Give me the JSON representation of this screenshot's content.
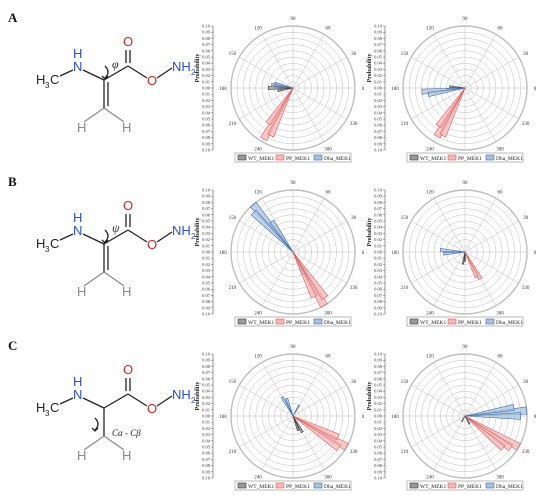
{
  "panels": [
    {
      "label": "A",
      "molecule": {
        "nh": "N",
        "h_on_n": "H",
        "ch3": "H",
        "ch3_sub": "3",
        "ch3_c": "C",
        "o_top": "O",
        "o_ester": "O",
        "nh2_n": "NH",
        "nh2_sub": "2",
        "torsion_symbol": "φ",
        "torsion_label": "",
        "h_left": "H",
        "h_right": "H",
        "variant": "alkene"
      },
      "plots": [
        {
          "ylabel": "Probability",
          "series": [
            {
              "name": "WT_MEK1",
              "petals": [
                {
                  "angle": 180,
                  "r": 0.04
                },
                {
                  "angle": 170,
                  "r": 0.03
                },
                {
                  "angle": 190,
                  "r": 0.025
                }
              ]
            },
            {
              "name": "PP_MEK1",
              "petals": [
                {
                  "angle": 240,
                  "r": 0.095
                },
                {
                  "angle": 245,
                  "r": 0.085
                },
                {
                  "angle": 235,
                  "r": 0.07
                }
              ]
            },
            {
              "name": "Dha_MEK1",
              "petals": [
                {
                  "angle": 170,
                  "r": 0.035
                },
                {
                  "angle": 165,
                  "r": 0.03
                }
              ]
            }
          ]
        },
        {
          "ylabel": "Probability",
          "series": [
            {
              "name": "WT_MEK1",
              "petals": [
                {
                  "angle": 185,
                  "r": 0.03
                },
                {
                  "angle": 175,
                  "r": 0.025
                }
              ]
            },
            {
              "name": "PP_MEK1",
              "petals": [
                {
                  "angle": 240,
                  "r": 0.09
                },
                {
                  "angle": 245,
                  "r": 0.085
                },
                {
                  "angle": 235,
                  "r": 0.075
                }
              ]
            },
            {
              "name": "Dha_MEK1",
              "petals": [
                {
                  "angle": 185,
                  "r": 0.07
                },
                {
                  "angle": 190,
                  "r": 0.06
                }
              ]
            }
          ]
        }
      ]
    },
    {
      "label": "B",
      "molecule": {
        "nh": "N",
        "h_on_n": "H",
        "ch3": "H",
        "ch3_sub": "3",
        "ch3_c": "C",
        "o_top": "O",
        "o_ester": "O",
        "nh2_n": "NH",
        "nh2_sub": "2",
        "torsion_symbol": "ψ",
        "torsion_label": "",
        "h_left": "H",
        "h_right": "H",
        "variant": "alkene"
      },
      "plots": [
        {
          "ylabel": "Probability",
          "series": [
            {
              "name": "WT_MEK1",
              "petals": [
                {
                  "angle": 300,
                  "r": 0.05
                },
                {
                  "angle": 295,
                  "r": 0.04
                }
              ]
            },
            {
              "name": "PP_MEK1",
              "petals": [
                {
                  "angle": 300,
                  "r": 0.1
                },
                {
                  "angle": 305,
                  "r": 0.09
                },
                {
                  "angle": 295,
                  "r": 0.08
                }
              ]
            },
            {
              "name": "Dha_MEK1",
              "petals": [
                {
                  "angle": 130,
                  "r": 0.1
                },
                {
                  "angle": 135,
                  "r": 0.09
                },
                {
                  "angle": 125,
                  "r": 0.06
                }
              ]
            }
          ]
        },
        {
          "ylabel": "Probability",
          "series": [
            {
              "name": "WT_MEK1",
              "petals": [
                {
                  "angle": 260,
                  "r": 0.02
                },
                {
                  "angle": 270,
                  "r": 0.015
                }
              ]
            },
            {
              "name": "PP_MEK1",
              "petals": [
                {
                  "angle": 300,
                  "r": 0.05
                },
                {
                  "angle": 295,
                  "r": 0.045
                }
              ]
            },
            {
              "name": "Dha_MEK1",
              "petals": [
                {
                  "angle": 175,
                  "r": 0.04
                },
                {
                  "angle": 185,
                  "r": 0.035
                }
              ]
            }
          ]
        }
      ]
    },
    {
      "label": "C",
      "molecule": {
        "nh": "N",
        "h_on_n": "H",
        "ch3": "H",
        "ch3_sub": "3",
        "ch3_c": "C",
        "o_top": "O",
        "o_ester": "O",
        "nh2_n": "NH",
        "nh2_sub": "2",
        "torsion_symbol": "",
        "torsion_label": "Cα - Cβ",
        "h_left": "H",
        "h_right": "H",
        "variant": "methyl"
      },
      "plots": [
        {
          "ylabel": "Probability",
          "series": [
            {
              "name": "WT_MEK1",
              "petals": [
                {
                  "angle": 300,
                  "r": 0.03
                },
                {
                  "angle": 290,
                  "r": 0.025
                }
              ]
            },
            {
              "name": "PP_MEK1",
              "petals": [
                {
                  "angle": 330,
                  "r": 0.1
                },
                {
                  "angle": 325,
                  "r": 0.09
                },
                {
                  "angle": 335,
                  "r": 0.08
                }
              ]
            },
            {
              "name": "Dha_MEK1",
              "petals": [
                {
                  "angle": 120,
                  "r": 0.035
                },
                {
                  "angle": 110,
                  "r": 0.03
                },
                {
                  "angle": 60,
                  "r": 0.02
                }
              ]
            }
          ]
        },
        {
          "ylabel": "Probability",
          "series": [
            {
              "name": "WT_MEK1",
              "petals": [
                {
                  "angle": 300,
                  "r": 0.015
                },
                {
                  "angle": 240,
                  "r": 0.01
                }
              ]
            },
            {
              "name": "PP_MEK1",
              "petals": [
                {
                  "angle": 330,
                  "r": 0.1
                },
                {
                  "angle": 325,
                  "r": 0.09
                },
                {
                  "angle": 320,
                  "r": 0.08
                }
              ]
            },
            {
              "name": "Dha_MEK1",
              "petals": [
                {
                  "angle": 5,
                  "r": 0.1
                },
                {
                  "angle": 0,
                  "r": 0.09
                },
                {
                  "angle": 10,
                  "r": 0.08
                }
              ]
            }
          ]
        }
      ]
    }
  ],
  "polar_axis": {
    "angle_ticks": [
      "0",
      "30",
      "60",
      "90",
      "120",
      "150",
      "180",
      "210",
      "240",
      "270",
      "300",
      "330"
    ],
    "radial_ticks": [
      "0.00",
      "0.01",
      "0.02",
      "0.03",
      "0.04",
      "0.05",
      "0.06",
      "0.07",
      "0.08",
      "0.09",
      "0.10"
    ],
    "radial_max": 0.1
  },
  "legend": [
    "WT_MEK1",
    "PP_MEK1",
    "Dha_MEK1"
  ],
  "colors": {
    "WT_MEK1": "#3a3a3a",
    "PP_MEK1": "#e05a5a",
    "Dha_MEK1": "#3d6da8",
    "PP_fill": "#f2b8b8",
    "Dha_fill": "#a9c1de",
    "WT_fill": "#9a9a9a",
    "carbon": "#222222",
    "nitrogen": "#2b4fd6",
    "oxygen": "#d62020",
    "hydrogen_gray": "#8a8a8a",
    "grid": "#bdbdbd"
  }
}
